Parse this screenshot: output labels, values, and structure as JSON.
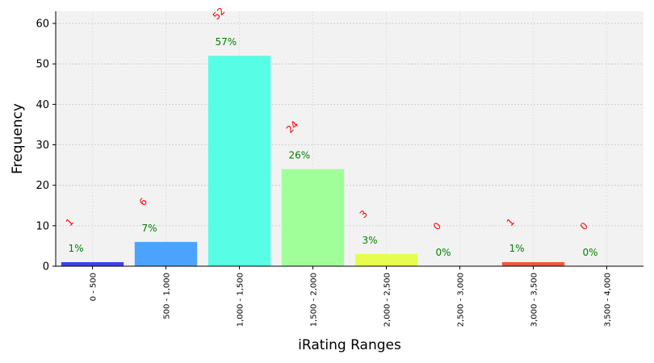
{
  "chart_data": {
    "type": "bar",
    "xlabel": "iRating Ranges",
    "ylabel": "Frequency",
    "ylim": [
      0,
      63
    ],
    "yticks": [
      "0",
      "10",
      "20",
      "30",
      "40",
      "50",
      "60"
    ],
    "grid": true,
    "categories": [
      "0 - 500",
      "500 - 1,000",
      "1,000 - 1,500",
      "1,500 - 2,000",
      "2,000 - 2,500",
      "2,500 - 3,000",
      "3,000 - 3,500",
      "3,500 - 4,000"
    ],
    "values": [
      1,
      6,
      52,
      24,
      3,
      0,
      1,
      0
    ],
    "count_labels": [
      "1",
      "6",
      "52",
      "24",
      "3",
      "0",
      "1",
      "0"
    ],
    "percent_labels": [
      "1%",
      "7%",
      "57%",
      "26%",
      "3%",
      "0%",
      "1%",
      "0%"
    ],
    "colors": [
      "#4040ee",
      "#4ca3ff",
      "#57fde5",
      "#a0ff98",
      "#e7fd4d",
      "#ff9a30",
      "#f0563c",
      "#8b0000"
    ],
    "background": "#f2f2f2"
  }
}
